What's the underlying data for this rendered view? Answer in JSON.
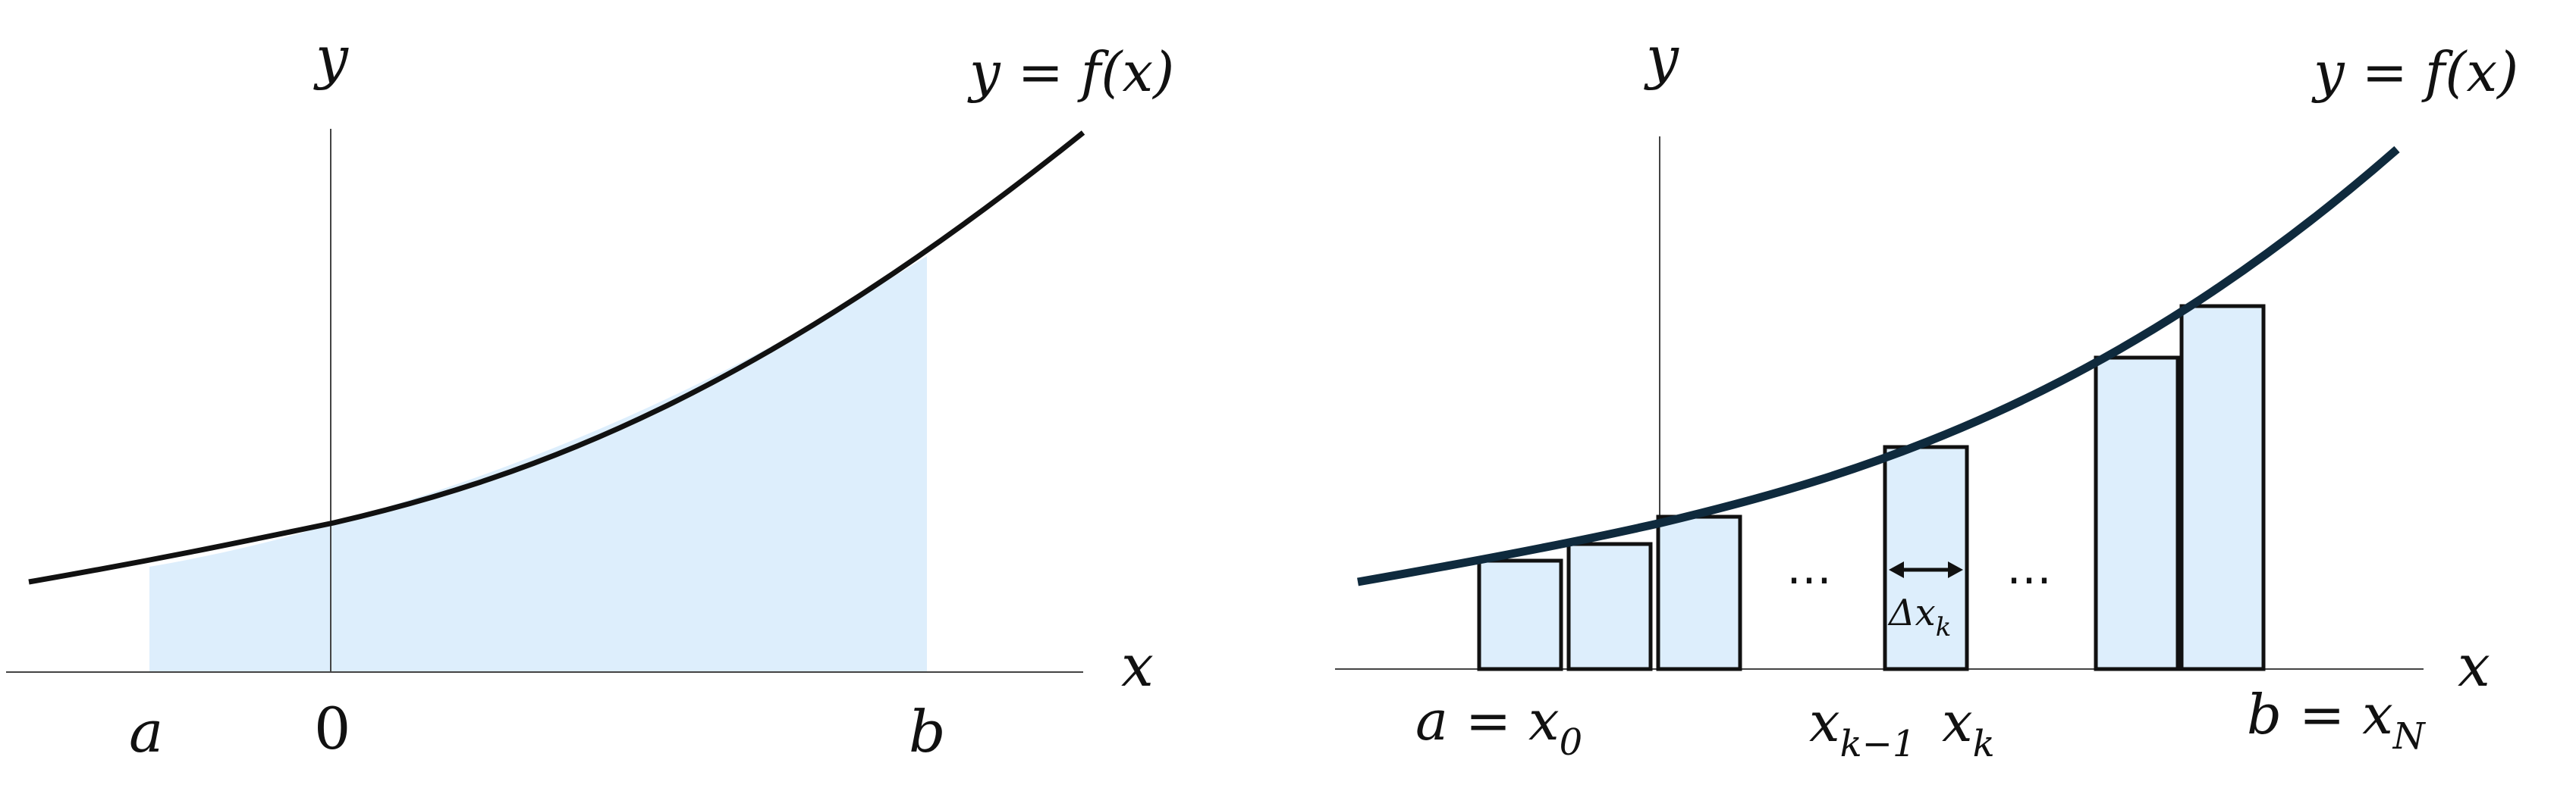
{
  "left_panel": {
    "y_axis_label": "y",
    "x_axis_label": "x",
    "curve_label": "y = f(x)",
    "label_a": "a",
    "label_zero": "0",
    "label_b": "b"
  },
  "right_panel": {
    "y_axis_label": "y",
    "x_axis_label": "x",
    "curve_label": "y = f(x)",
    "label_start": {
      "base": "a = x",
      "sub": "0"
    },
    "label_k_minus_1": {
      "base": "x",
      "sub": "k−1"
    },
    "label_k": {
      "base": "x",
      "sub": "k"
    },
    "label_end": {
      "base": "b = x",
      "sub": "N"
    },
    "delta_label": {
      "base": "Δx",
      "sub": "k"
    },
    "ellipsis_left": "⋯",
    "ellipsis_right": "⋯"
  },
  "colors": {
    "fill": "#ddeefc",
    "curve_left": "#111111",
    "curve_right": "#0f2a3d",
    "axis": "#444444"
  }
}
